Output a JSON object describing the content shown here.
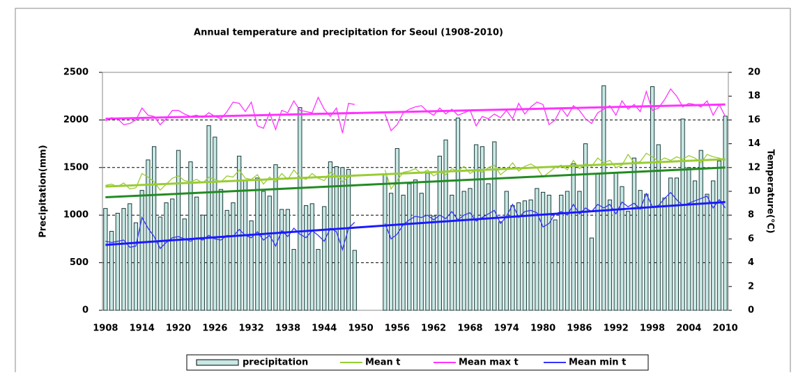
{
  "chart_data": {
    "type": "bar-line",
    "title": "Annual temperature and precipitation for Seoul (1908-2010)",
    "y_label": "Precipitation(mm)",
    "y2_label": "Temperature(℃)",
    "x": [
      1908,
      1909,
      1910,
      1911,
      1912,
      1913,
      1914,
      1915,
      1916,
      1917,
      1918,
      1919,
      1920,
      1921,
      1922,
      1923,
      1924,
      1925,
      1926,
      1927,
      1928,
      1929,
      1930,
      1931,
      1932,
      1933,
      1934,
      1935,
      1936,
      1937,
      1938,
      1939,
      1940,
      1941,
      1942,
      1943,
      1944,
      1945,
      1946,
      1947,
      1948,
      1949,
      1950,
      1951,
      1952,
      1953,
      1954,
      1955,
      1956,
      1957,
      1958,
      1959,
      1960,
      1961,
      1962,
      1963,
      1964,
      1965,
      1966,
      1967,
      1968,
      1969,
      1970,
      1971,
      1972,
      1973,
      1974,
      1975,
      1976,
      1977,
      1978,
      1979,
      1980,
      1981,
      1982,
      1983,
      1984,
      1985,
      1986,
      1987,
      1988,
      1989,
      1990,
      1991,
      1992,
      1993,
      1994,
      1995,
      1996,
      1997,
      1998,
      1999,
      2000,
      2001,
      2002,
      2003,
      2004,
      2005,
      2006,
      2007,
      2008,
      2009,
      2010
    ],
    "xticks": [
      1908,
      1914,
      1920,
      1926,
      1932,
      1938,
      1944,
      1950,
      1956,
      1962,
      1968,
      1974,
      1980,
      1986,
      1992,
      1998,
      2004,
      2010
    ],
    "ylim": [
      0,
      2500
    ],
    "yticks": [
      0,
      500,
      1000,
      1500,
      2000,
      2500
    ],
    "y2lim": [
      0,
      20
    ],
    "y2ticks": [
      0,
      2,
      4,
      6,
      8,
      10,
      12,
      14,
      16,
      18,
      20
    ],
    "grid": true,
    "series": [
      {
        "name": "precipitation",
        "kind": "bar",
        "color": "#c8e8e4",
        "values": [
          1070,
          830,
          1020,
          1070,
          1120,
          920,
          1260,
          1580,
          1720,
          980,
          1130,
          1170,
          1680,
          960,
          1560,
          1190,
          1000,
          1940,
          1820,
          1270,
          1050,
          1130,
          1620,
          1370,
          940,
          1390,
          1250,
          1200,
          1530,
          1060,
          1060,
          640,
          2130,
          1100,
          1120,
          640,
          1090,
          1560,
          1510,
          1500,
          1480,
          630,
          null,
          null,
          null,
          null,
          1430,
          1230,
          1700,
          1210,
          1330,
          1370,
          1230,
          1440,
          990,
          1620,
          1790,
          1210,
          2020,
          1250,
          1280,
          1740,
          1720,
          1330,
          1770,
          930,
          1250,
          1100,
          1130,
          1150,
          1160,
          1280,
          1240,
          1210,
          950,
          1210,
          1250,
          1540,
          1250,
          1750,
          760,
          1440,
          2360,
          1160,
          1450,
          1300,
          1040,
          1600,
          1260,
          1220,
          2350,
          1740,
          1180,
          1390,
          1390,
          2010,
          1500,
          1360,
          1680,
          1220,
          1360,
          1570,
          2040
        ]
      },
      {
        "name": "Mean t",
        "kind": "line",
        "axis": "y2",
        "color": "#99cc33",
        "values": [
          10.5,
          10.6,
          10.4,
          10.7,
          10.2,
          10.3,
          11.5,
          11.2,
          10.8,
          10.1,
          10.6,
          11.1,
          11.3,
          10.9,
          10.8,
          11.0,
          10.7,
          11.2,
          11.0,
          10.8,
          11.3,
          11.2,
          11.8,
          11.1,
          11.0,
          11.4,
          10.6,
          11.2,
          10.8,
          11.5,
          11.0,
          11.8,
          11.2,
          11.0,
          11.5,
          11.1,
          10.9,
          11.6,
          11.3,
          10.8,
          11.2,
          11.4,
          null,
          null,
          null,
          null,
          11.8,
          10.2,
          10.9,
          11.6,
          11.7,
          11.9,
          11.5,
          11.8,
          11.3,
          11.6,
          11.4,
          11.9,
          11.7,
          12.1,
          11.5,
          11.8,
          11.6,
          12.0,
          12.2,
          11.4,
          11.8,
          12.4,
          11.7,
          12.1,
          12.3,
          12.0,
          11.2,
          11.6,
          12.0,
          12.2,
          11.8,
          12.6,
          11.9,
          12.3,
          12.1,
          12.8,
          12.4,
          12.6,
          12.0,
          12.2,
          13.1,
          12.4,
          12.5,
          13.2,
          12.9,
          12.5,
          12.8,
          12.6,
          12.9,
          12.7,
          13.0,
          12.8,
          12.4,
          13.1,
          12.9,
          12.8,
          12.6
        ]
      },
      {
        "name": "Mean max t",
        "kind": "line",
        "axis": "y2",
        "color": "#ff33ff",
        "values": [
          15.9,
          16.2,
          16.1,
          15.6,
          15.7,
          16.0,
          17.0,
          16.4,
          16.3,
          15.6,
          16.1,
          16.8,
          16.8,
          16.5,
          16.3,
          16.4,
          16.2,
          16.6,
          16.3,
          16.1,
          16.7,
          17.5,
          17.4,
          16.7,
          17.5,
          15.5,
          15.3,
          16.6,
          15.2,
          16.8,
          16.6,
          17.6,
          16.8,
          16.7,
          16.6,
          17.9,
          16.9,
          16.3,
          17.0,
          14.9,
          17.4,
          17.3,
          null,
          null,
          null,
          null,
          16.5,
          15.1,
          15.6,
          16.6,
          16.9,
          17.1,
          17.2,
          16.7,
          16.4,
          17.0,
          16.5,
          16.9,
          16.4,
          16.6,
          16.8,
          15.5,
          16.3,
          16.1,
          16.5,
          16.2,
          16.8,
          16.1,
          17.4,
          16.5,
          17.1,
          17.5,
          17.3,
          15.6,
          16.0,
          17.0,
          16.3,
          17.2,
          16.8,
          16.1,
          15.7,
          16.6,
          16.9,
          17.2,
          16.4,
          17.6,
          16.9,
          17.3,
          16.7,
          18.4,
          16.8,
          17.0,
          17.7,
          18.6,
          18.0,
          17.1,
          17.4,
          17.3,
          17.1,
          17.6,
          16.4,
          17.3,
          16.3
        ]
      },
      {
        "name": "Mean min t",
        "kind": "line",
        "axis": "y2",
        "color": "#3333ff",
        "values": [
          5.8,
          5.7,
          5.8,
          5.9,
          5.3,
          5.4,
          7.8,
          6.9,
          6.2,
          5.2,
          5.7,
          6.1,
          6.2,
          6.0,
          5.8,
          6.1,
          5.9,
          6.3,
          6.0,
          5.9,
          6.3,
          6.2,
          6.8,
          6.3,
          6.1,
          6.6,
          5.9,
          6.3,
          5.4,
          6.7,
          6.2,
          6.9,
          6.4,
          6.1,
          6.7,
          6.3,
          5.8,
          6.9,
          6.6,
          5.1,
          6.9,
          7.4,
          null,
          null,
          null,
          null,
          7.3,
          6.0,
          6.4,
          7.2,
          7.6,
          7.9,
          7.8,
          8.0,
          7.6,
          8.0,
          7.7,
          8.3,
          7.6,
          8.0,
          8.2,
          7.5,
          7.8,
          8.1,
          8.4,
          7.3,
          7.9,
          8.9,
          7.8,
          8.3,
          8.4,
          8.2,
          7.0,
          7.3,
          8.1,
          8.3,
          8.0,
          8.9,
          8.1,
          8.6,
          8.3,
          8.9,
          8.6,
          8.9,
          8.1,
          9.1,
          8.7,
          9.0,
          8.5,
          9.8,
          8.7,
          8.8,
          9.4,
          9.9,
          9.3,
          8.8,
          9.0,
          9.2,
          9.4,
          9.6,
          8.6,
          9.3,
          8.6
        ]
      }
    ],
    "trends": [
      {
        "color": "#99cc33",
        "values": [
          10.4,
          12.7
        ]
      },
      {
        "color": "#228b22",
        "values": [
          9.5,
          12.0
        ]
      },
      {
        "color": "#ff33ff",
        "values": [
          16.1,
          17.3
        ]
      },
      {
        "color": "#1a1aff",
        "values": [
          5.5,
          9.1
        ]
      }
    ]
  }
}
